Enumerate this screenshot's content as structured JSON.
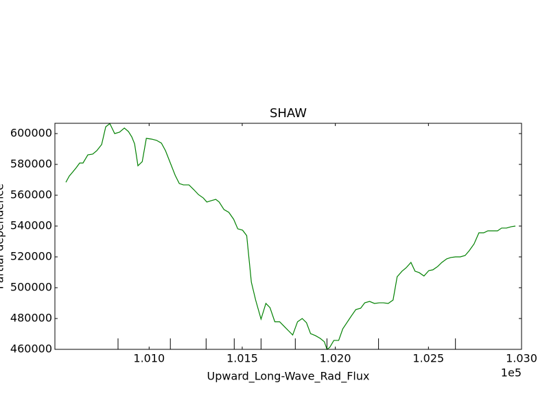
{
  "chart_data": {
    "type": "line",
    "title": "SHAW",
    "xlabel": "Upward_Long-Wave_Rad_Flux",
    "ylabel": "Partial dependence",
    "x_offset_label": "1e5",
    "x": [
      100553,
      100571,
      100590,
      100608,
      100627,
      100645,
      100671,
      100697,
      100719,
      100745,
      100767,
      100789,
      100815,
      100841,
      100867,
      100889,
      100907,
      100922,
      100940,
      100963,
      100985,
      101014,
      101040,
      101066,
      101088,
      101114,
      101140,
      101162,
      101184,
      101214,
      101240,
      101265,
      101291,
      101310,
      101332,
      101358,
      101376,
      101402,
      101428,
      101454,
      101476,
      101502,
      101524,
      101549,
      101572,
      101601,
      101627,
      101649,
      101675,
      101701,
      101727,
      101749,
      101771,
      101797,
      101822,
      101845,
      101867,
      101893,
      101919,
      101941,
      101955,
      101970,
      101992,
      102018,
      102040,
      102062,
      102084,
      102110,
      102136,
      102158,
      102184,
      102210,
      102236,
      102258,
      102284,
      102310,
      102332,
      102358,
      102380,
      102406,
      102428,
      102450,
      102476,
      102502,
      102524,
      102550,
      102572,
      102598,
      102620,
      102645,
      102671,
      102697,
      102719,
      102745,
      102771,
      102797,
      102819,
      102845,
      102871,
      102893,
      102919,
      102945,
      102967
    ],
    "series": [
      {
        "color": "#008000",
        "values": [
          568400,
          572400,
          575100,
          577800,
          580900,
          580900,
          586200,
          586700,
          588900,
          592900,
          604400,
          606500,
          600000,
          600900,
          603600,
          601300,
          597800,
          593300,
          579100,
          581800,
          596900,
          596400,
          595600,
          593800,
          588900,
          580900,
          572900,
          567600,
          566700,
          566700,
          563600,
          560400,
          558200,
          555600,
          556400,
          557300,
          555600,
          550700,
          548900,
          544400,
          538200,
          537300,
          533800,
          503600,
          492000,
          479600,
          489800,
          487100,
          477900,
          477900,
          474700,
          472000,
          469300,
          477900,
          480000,
          477300,
          470200,
          468900,
          467100,
          464900,
          460000,
          461300,
          465800,
          465800,
          473300,
          477300,
          481300,
          485800,
          486700,
          490200,
          491100,
          489800,
          490200,
          490200,
          489800,
          492000,
          507100,
          510700,
          512900,
          516400,
          510700,
          509800,
          507600,
          511100,
          511600,
          513800,
          516400,
          518700,
          519600,
          520000,
          520000,
          520900,
          524000,
          528400,
          535600,
          535600,
          536900,
          536900,
          536900,
          538700,
          538700,
          539600,
          540000
        ]
      }
    ],
    "deciles": [
      100833,
      101114,
      101306,
      101457,
      101601,
      101785,
      101955,
      102232,
      102645
    ],
    "xlim": [
      100494,
      103000
    ],
    "xticks": [
      {
        "value": 101000,
        "label": "1.010"
      },
      {
        "value": 101500,
        "label": "1.015"
      },
      {
        "value": 102000,
        "label": "1.020"
      },
      {
        "value": 102500,
        "label": "1.025"
      },
      {
        "value": 103000,
        "label": "1.030"
      }
    ],
    "ylim": [
      460000,
      606667
    ],
    "yticks": [
      460000,
      480000,
      500000,
      520000,
      540000,
      560000,
      580000,
      600000
    ]
  }
}
